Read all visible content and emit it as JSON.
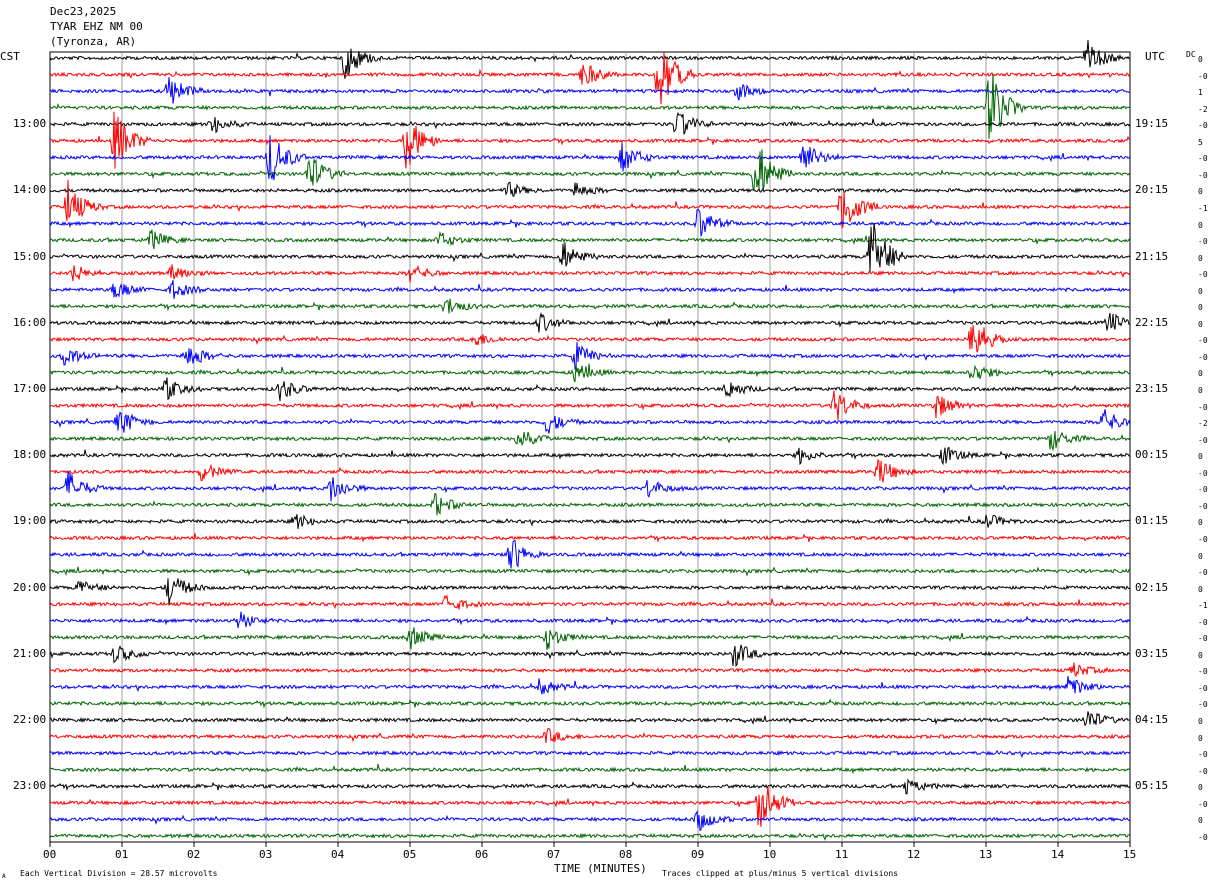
{
  "header": {
    "date": "Dec23,2025",
    "station": "TYAR EHZ NM 00",
    "location": "(Tyronza, AR)"
  },
  "labels": {
    "left_timezone": "CST",
    "right_timezone": "UTC",
    "dc_label": "DC",
    "xlabel": "TIME (MINUTES)",
    "scale_note": "Each Vertical Division =   28.57 microvolts",
    "clip_note": "Traces clipped at plus/minus 5 vertical divisions",
    "corner_mark": "A"
  },
  "colors": {
    "black": "#000000",
    "red": "#ff0000",
    "blue": "#0000ff",
    "green": "#006400",
    "grid": "#888888"
  },
  "chart_data": {
    "type": "line",
    "trace_count": 48,
    "trace_color_cycle": [
      "black",
      "red",
      "blue",
      "green"
    ],
    "minutes_per_trace": 15,
    "x_ticks": [
      "00",
      "01",
      "02",
      "03",
      "04",
      "05",
      "06",
      "07",
      "08",
      "09",
      "10",
      "11",
      "12",
      "13",
      "14",
      "15"
    ],
    "left_hour_labels": [
      "13:00",
      "14:00",
      "15:00",
      "16:00",
      "17:00",
      "18:00",
      "19:00",
      "20:00",
      "21:00",
      "22:00",
      "23:00"
    ],
    "right_hour_labels": [
      "19:15",
      "20:15",
      "21:15",
      "22:15",
      "23:15",
      "00:15",
      "01:15",
      "02:15",
      "03:15",
      "04:15",
      "05:15"
    ],
    "dc_offsets": [
      "0",
      "-0",
      "1",
      "-2",
      "-0",
      "5",
      "-0",
      "-0",
      "0",
      "-1",
      "0",
      "-0",
      "0",
      "-0",
      "0",
      "0",
      "0",
      "-0",
      "-0",
      "0",
      "0",
      "-0",
      "-2",
      "-0",
      "0",
      "-0",
      "-0",
      "-0",
      "0",
      "-0",
      "0",
      "-0",
      "0",
      "-1",
      "-0",
      "-0",
      "0",
      "-0",
      "-0",
      "-0",
      "0",
      "0",
      "-0",
      "-0",
      "0",
      "-0",
      "0",
      "-0"
    ],
    "events": [
      {
        "trace": 0,
        "minute": 4.1,
        "amp": 22
      },
      {
        "trace": 0,
        "minute": 14.4,
        "amp": 18
      },
      {
        "trace": 1,
        "minute": 7.4,
        "amp": 14
      },
      {
        "trace": 1,
        "minute": 8.45,
        "amp": 40
      },
      {
        "trace": 2,
        "minute": 1.65,
        "amp": 18
      },
      {
        "trace": 2,
        "minute": 9.55,
        "amp": 10
      },
      {
        "trace": 3,
        "minute": 13.05,
        "amp": 45
      },
      {
        "trace": 4,
        "minute": 8.7,
        "amp": 16
      },
      {
        "trace": 4,
        "minute": 2.25,
        "amp": 10
      },
      {
        "trace": 5,
        "minute": 0.9,
        "amp": 34
      },
      {
        "trace": 5,
        "minute": 4.95,
        "amp": 30
      },
      {
        "trace": 6,
        "minute": 3.05,
        "amp": 30
      },
      {
        "trace": 6,
        "minute": 7.95,
        "amp": 16
      },
      {
        "trace": 6,
        "minute": 10.45,
        "amp": 18
      },
      {
        "trace": 7,
        "minute": 3.6,
        "amp": 22
      },
      {
        "trace": 7,
        "minute": 9.8,
        "amp": 40
      },
      {
        "trace": 8,
        "minute": 6.35,
        "amp": 8
      },
      {
        "trace": 8,
        "minute": 7.3,
        "amp": 8
      },
      {
        "trace": 9,
        "minute": 0.25,
        "amp": 26
      },
      {
        "trace": 9,
        "minute": 11.0,
        "amp": 30
      },
      {
        "trace": 10,
        "minute": 9.0,
        "amp": 18
      },
      {
        "trace": 11,
        "minute": 1.4,
        "amp": 10
      },
      {
        "trace": 11,
        "minute": 5.4,
        "amp": 8
      },
      {
        "trace": 12,
        "minute": 7.1,
        "amp": 18
      },
      {
        "trace": 12,
        "minute": 11.4,
        "amp": 45
      },
      {
        "trace": 13,
        "minute": 0.3,
        "amp": 10
      },
      {
        "trace": 13,
        "minute": 1.7,
        "amp": 10
      },
      {
        "trace": 13,
        "minute": 5.0,
        "amp": 10
      },
      {
        "trace": 14,
        "minute": 0.9,
        "amp": 10
      },
      {
        "trace": 14,
        "minute": 1.7,
        "amp": 10
      },
      {
        "trace": 15,
        "minute": 5.5,
        "amp": 10
      },
      {
        "trace": 16,
        "minute": 6.8,
        "amp": 10
      },
      {
        "trace": 16,
        "minute": 14.7,
        "amp": 12
      },
      {
        "trace": 17,
        "minute": 12.8,
        "amp": 28
      },
      {
        "trace": 17,
        "minute": 5.9,
        "amp": 8
      },
      {
        "trace": 18,
        "minute": 0.2,
        "amp": 10
      },
      {
        "trace": 18,
        "minute": 1.9,
        "amp": 14
      },
      {
        "trace": 18,
        "minute": 7.3,
        "amp": 14
      },
      {
        "trace": 19,
        "minute": 7.3,
        "amp": 12
      },
      {
        "trace": 19,
        "minute": 12.8,
        "amp": 12
      },
      {
        "trace": 20,
        "minute": 1.6,
        "amp": 12
      },
      {
        "trace": 20,
        "minute": 3.2,
        "amp": 12
      },
      {
        "trace": 20,
        "minute": 9.4,
        "amp": 10
      },
      {
        "trace": 21,
        "minute": 10.9,
        "amp": 18
      },
      {
        "trace": 21,
        "minute": 12.3,
        "amp": 14
      },
      {
        "trace": 22,
        "minute": 0.95,
        "amp": 16
      },
      {
        "trace": 22,
        "minute": 6.9,
        "amp": 12
      },
      {
        "trace": 22,
        "minute": 14.6,
        "amp": 16
      },
      {
        "trace": 23,
        "minute": 6.5,
        "amp": 12
      },
      {
        "trace": 23,
        "minute": 13.9,
        "amp": 12
      },
      {
        "trace": 24,
        "minute": 10.4,
        "amp": 8
      },
      {
        "trace": 24,
        "minute": 12.4,
        "amp": 10
      },
      {
        "trace": 25,
        "minute": 2.1,
        "amp": 10
      },
      {
        "trace": 25,
        "minute": 11.5,
        "amp": 16
      },
      {
        "trace": 26,
        "minute": 0.25,
        "amp": 18
      },
      {
        "trace": 26,
        "minute": 3.9,
        "amp": 14
      },
      {
        "trace": 26,
        "minute": 8.3,
        "amp": 10
      },
      {
        "trace": 27,
        "minute": 5.35,
        "amp": 12
      },
      {
        "trace": 28,
        "minute": 3.4,
        "amp": 8
      },
      {
        "trace": 28,
        "minute": 13.0,
        "amp": 8
      },
      {
        "trace": 30,
        "minute": 6.4,
        "amp": 18
      },
      {
        "trace": 32,
        "minute": 0.4,
        "amp": 8
      },
      {
        "trace": 32,
        "minute": 1.65,
        "amp": 18
      },
      {
        "trace": 33,
        "minute": 5.5,
        "amp": 10
      },
      {
        "trace": 34,
        "minute": 2.6,
        "amp": 10
      },
      {
        "trace": 35,
        "minute": 5.0,
        "amp": 12
      },
      {
        "trace": 35,
        "minute": 6.9,
        "amp": 12
      },
      {
        "trace": 36,
        "minute": 0.9,
        "amp": 10
      },
      {
        "trace": 36,
        "minute": 9.5,
        "amp": 14
      },
      {
        "trace": 37,
        "minute": 14.2,
        "amp": 8
      },
      {
        "trace": 38,
        "minute": 6.8,
        "amp": 8
      },
      {
        "trace": 38,
        "minute": 14.15,
        "amp": 12
      },
      {
        "trace": 40,
        "minute": 14.4,
        "amp": 12
      },
      {
        "trace": 41,
        "minute": 6.9,
        "amp": 8
      },
      {
        "trace": 44,
        "minute": 11.9,
        "amp": 8
      },
      {
        "trace": 45,
        "minute": 9.85,
        "amp": 30
      },
      {
        "trace": 46,
        "minute": 9.0,
        "amp": 12
      }
    ]
  }
}
